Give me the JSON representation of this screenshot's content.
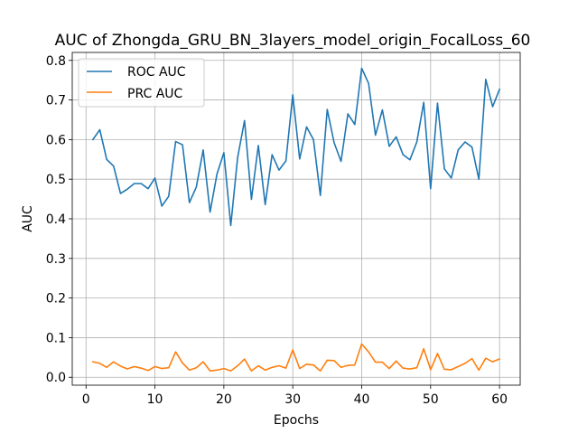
{
  "chart_data": {
    "type": "line",
    "title": "AUC of Zhongda_GRU_BN_3layers_model_origin_FocalLoss_60",
    "xlabel": "Epochs",
    "ylabel": "AUC",
    "xlim": [
      -2,
      63
    ],
    "ylim": [
      -0.02,
      0.82
    ],
    "xticks": [
      0,
      10,
      20,
      30,
      40,
      50,
      60
    ],
    "yticks": [
      0.0,
      0.1,
      0.2,
      0.3,
      0.4,
      0.5,
      0.6,
      0.7,
      0.8
    ],
    "grid": true,
    "legend_position": "upper-left",
    "x": [
      1,
      2,
      3,
      4,
      5,
      6,
      7,
      8,
      9,
      10,
      11,
      12,
      13,
      14,
      15,
      16,
      17,
      18,
      19,
      20,
      21,
      22,
      23,
      24,
      25,
      26,
      27,
      28,
      29,
      30,
      31,
      32,
      33,
      34,
      35,
      36,
      37,
      38,
      39,
      40,
      41,
      42,
      43,
      44,
      45,
      46,
      47,
      48,
      49,
      50,
      51,
      52,
      53,
      54,
      55,
      56,
      57,
      58,
      59,
      60
    ],
    "series": [
      {
        "name": "ROC AUC",
        "color": "#1f77b4",
        "values": [
          0.6,
          0.625,
          0.55,
          0.533,
          0.464,
          0.475,
          0.489,
          0.489,
          0.476,
          0.503,
          0.432,
          0.457,
          0.595,
          0.587,
          0.441,
          0.48,
          0.574,
          0.417,
          0.513,
          0.567,
          0.383,
          0.555,
          0.648,
          0.449,
          0.585,
          0.436,
          0.562,
          0.523,
          0.546,
          0.713,
          0.551,
          0.632,
          0.6,
          0.459,
          0.676,
          0.592,
          0.545,
          0.665,
          0.638,
          0.78,
          0.742,
          0.611,
          0.675,
          0.583,
          0.607,
          0.562,
          0.549,
          0.594,
          0.694,
          0.476,
          0.692,
          0.526,
          0.503,
          0.574,
          0.594,
          0.581,
          0.5,
          0.752,
          0.683,
          0.727
        ]
      },
      {
        "name": "PRC AUC",
        "color": "#ff7f0e",
        "values": [
          0.039,
          0.035,
          0.025,
          0.039,
          0.028,
          0.021,
          0.027,
          0.023,
          0.017,
          0.027,
          0.022,
          0.024,
          0.064,
          0.036,
          0.018,
          0.024,
          0.039,
          0.016,
          0.018,
          0.022,
          0.016,
          0.029,
          0.046,
          0.016,
          0.029,
          0.018,
          0.025,
          0.029,
          0.023,
          0.069,
          0.022,
          0.033,
          0.031,
          0.016,
          0.043,
          0.042,
          0.025,
          0.03,
          0.031,
          0.084,
          0.064,
          0.038,
          0.038,
          0.022,
          0.041,
          0.023,
          0.021,
          0.024,
          0.072,
          0.019,
          0.06,
          0.02,
          0.019,
          0.027,
          0.035,
          0.047,
          0.018,
          0.048,
          0.039,
          0.046
        ]
      }
    ]
  }
}
